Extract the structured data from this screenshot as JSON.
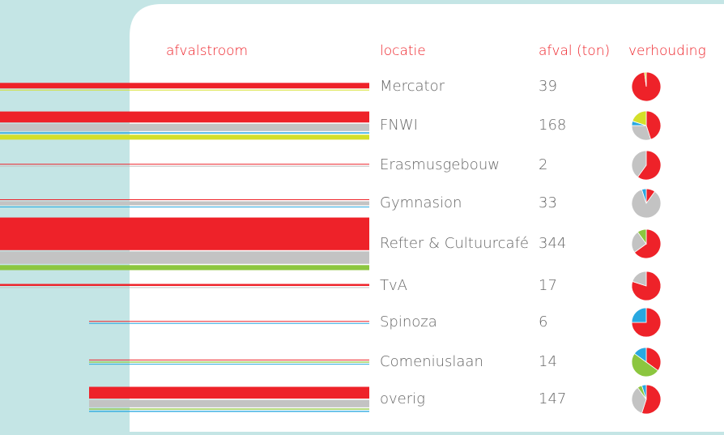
{
  "header": {
    "columns": [
      "afvalstroom",
      "locatie",
      "afval (ton)",
      "verhouding"
    ]
  },
  "colors": [
    "#ee2229",
    "#c3c3c3",
    "#8cc63f",
    "#29a8e0",
    "#d4df2a"
  ],
  "rows": [
    {
      "location": "Mercator",
      "tons": 39,
      "shares": [
        98,
        0,
        0,
        0,
        2
      ]
    },
    {
      "location": "FNWI",
      "tons": 168,
      "shares": [
        45,
        30,
        0,
        5,
        20
      ]
    },
    {
      "location": "Erasmusgebouw",
      "tons": 2,
      "shares": [
        60,
        40,
        0,
        0,
        0
      ]
    },
    {
      "location": "Gymnasion",
      "tons": 33,
      "shares": [
        10,
        85,
        0,
        5,
        0
      ]
    },
    {
      "location": "Refter & Cultuurcafé",
      "tons": 344,
      "shares": [
        65,
        25,
        10,
        0,
        0
      ]
    },
    {
      "location": "TvA",
      "tons": 17,
      "shares": [
        80,
        20,
        0,
        0,
        0
      ]
    },
    {
      "location": "Spinoza",
      "tons": 6,
      "shares": [
        75,
        0,
        0,
        25,
        0
      ]
    },
    {
      "location": "Comeniuslaan",
      "tons": 14,
      "shares": [
        35,
        0,
        50,
        15,
        0
      ]
    },
    {
      "location": "overig",
      "tons": 147,
      "shares": [
        55,
        35,
        5,
        5,
        0
      ]
    }
  ]
}
